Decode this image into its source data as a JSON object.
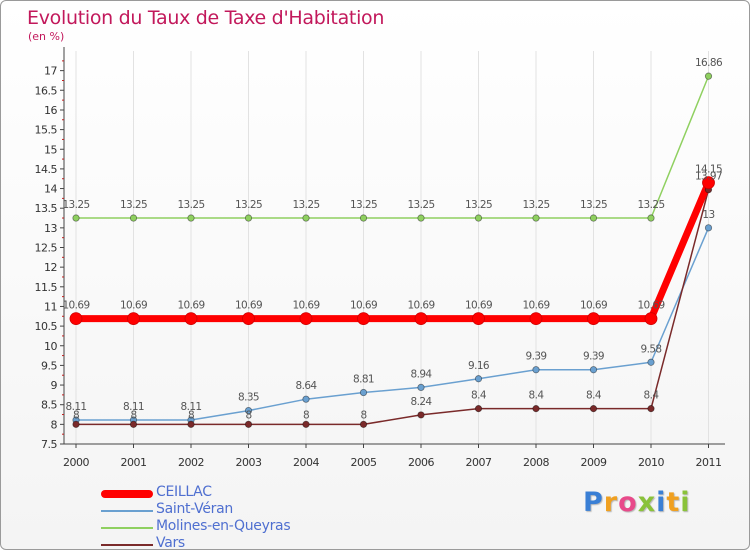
{
  "title": "Evolution du Taux de Taxe d'Habitation",
  "unit": "(en %)",
  "brand": {
    "letters": [
      {
        "char": "P",
        "color": "#3a7fd5"
      },
      {
        "char": "r",
        "color": "#f0a020"
      },
      {
        "char": "o",
        "color": "#e84a8a"
      },
      {
        "char": "x",
        "color": "#8ac23a"
      },
      {
        "char": "i",
        "color": "#3a7fd5"
      },
      {
        "char": "t",
        "color": "#f0a020"
      },
      {
        "char": "i",
        "color": "#8ac23a"
      }
    ]
  },
  "chart_data": {
    "type": "line",
    "title": "Evolution du Taux de Taxe d'Habitation",
    "ylabel": "(en %)",
    "x": [
      "2000",
      "2001",
      "2002",
      "2003",
      "2004",
      "2005",
      "2006",
      "2007",
      "2008",
      "2009",
      "2010",
      "2011"
    ],
    "ylim": [
      7.5,
      17.5
    ],
    "yticks": [
      "7.5",
      "8",
      "8.5",
      "9",
      "9.5",
      "10",
      "10.5",
      "11",
      "11.5",
      "12",
      "12.5",
      "13",
      "13.5",
      "14",
      "14.5",
      "15",
      "15.5",
      "16",
      "16.5",
      "17"
    ],
    "legend_position": "bottom-left",
    "series": [
      {
        "name": "CEILLAC",
        "color": "#ff0000",
        "values": [
          10.69,
          10.69,
          10.69,
          10.69,
          10.69,
          10.69,
          10.69,
          10.69,
          10.69,
          10.69,
          10.69,
          14.15
        ],
        "labels": [
          "10.69",
          "10.69",
          "10.69",
          "10.69",
          "10.69",
          "10.69",
          "10.69",
          "10.69",
          "10.69",
          "10.69",
          "10.69",
          "14.15"
        ]
      },
      {
        "name": "Saint-Véran",
        "color": "#6aa0d0",
        "values": [
          8.11,
          8.11,
          8.11,
          8.35,
          8.64,
          8.81,
          8.94,
          9.16,
          9.39,
          9.39,
          9.58,
          13.0
        ],
        "labels": [
          "8.11",
          "8.11",
          "8.11",
          "8.35",
          "8.64",
          "8.81",
          "8.94",
          "9.16",
          "9.39",
          "9.39",
          "9.58",
          "13"
        ]
      },
      {
        "name": "Molines-en-Queyras",
        "color": "#8fd060",
        "values": [
          13.25,
          13.25,
          13.25,
          13.25,
          13.25,
          13.25,
          13.25,
          13.25,
          13.25,
          13.25,
          13.25,
          16.86
        ],
        "labels": [
          "13.25",
          "13.25",
          "13.25",
          "13.25",
          "13.25",
          "13.25",
          "13.25",
          "13.25",
          "13.25",
          "13.25",
          "13.25",
          "16.86"
        ]
      },
      {
        "name": "Vars",
        "color": "#7a2a2a",
        "values": [
          8.0,
          8.0,
          8.0,
          8.0,
          8.0,
          8.0,
          8.24,
          8.4,
          8.4,
          8.4,
          8.4,
          13.97
        ],
        "labels": [
          "8",
          "8",
          "8",
          "8",
          "8",
          "8",
          "8.24",
          "8.4",
          "8.4",
          "8.4",
          "8.4",
          "13.97"
        ]
      }
    ]
  }
}
